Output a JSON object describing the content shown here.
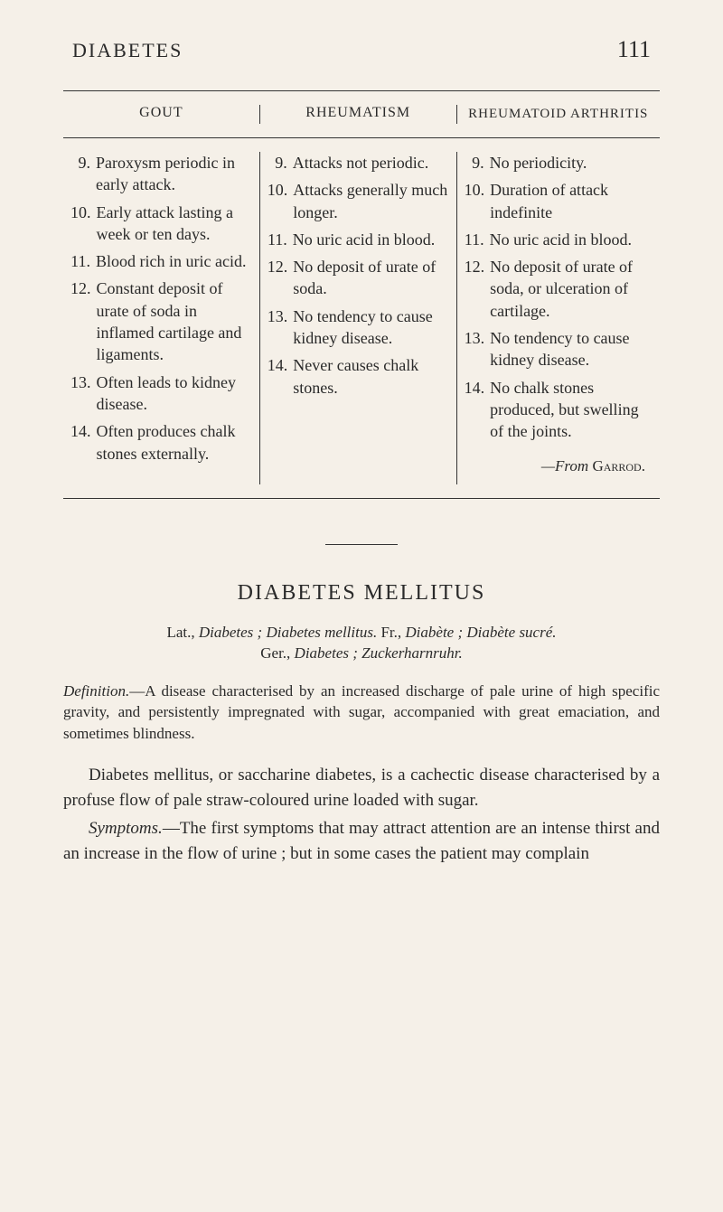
{
  "header": {
    "title": "DIABETES",
    "page_number": "111"
  },
  "table": {
    "columns": {
      "col1_header": "GOUT",
      "col2_header": "RHEUMATISM",
      "col3_header": "RHEUMATOID ARTHRITIS"
    },
    "rows": {
      "gout": [
        {
          "num": "9.",
          "text": "Paroxysm periodic in early attack."
        },
        {
          "num": "10.",
          "text": "Early attack lasting a week or ten days."
        },
        {
          "num": "11.",
          "text": "Blood rich in uric acid."
        },
        {
          "num": "12.",
          "text": "Constant deposit of urate of soda in inflamed cartilage and ligaments."
        },
        {
          "num": "13.",
          "text": "Often leads to kidney disease."
        },
        {
          "num": "14.",
          "text": "Often produces chalk stones externally."
        }
      ],
      "rheumatism": [
        {
          "num": "9.",
          "text": "Attacks not periodic."
        },
        {
          "num": "10.",
          "text": "Attacks generally much longer."
        },
        {
          "num": "11.",
          "text": "No uric acid in blood."
        },
        {
          "num": "12.",
          "text": "No deposit of urate of soda."
        },
        {
          "num": "13.",
          "text": "No tendency to cause kidney disease."
        },
        {
          "num": "14.",
          "text": "Never causes chalk stones."
        }
      ],
      "rheumatoid": [
        {
          "num": "9.",
          "text": "No periodicity."
        },
        {
          "num": "10.",
          "text": "Duration of attack indefinite"
        },
        {
          "num": "11.",
          "text": "No uric acid in blood."
        },
        {
          "num": "12.",
          "text": "No deposit of urate of soda, or ulceration of cartilage."
        },
        {
          "num": "13.",
          "text": "No tendency to cause kidney disease."
        },
        {
          "num": "14.",
          "text": "No chalk stones produced, but swelling of the joints."
        }
      ]
    },
    "citation_prefix": "—From ",
    "citation_name": "Garrod."
  },
  "section": {
    "title": "DIABETES MELLITUS",
    "lat_prefix": "Lat., ",
    "lat_italic1": "Diabetes ; Diabetes mellitus.",
    "lat_mid": " Fr., ",
    "lat_italic2": "Diabète ; Diabète sucré.",
    "ger_prefix": "Ger., ",
    "ger_italic": "Diabetes ; Zuckerharnruhr.",
    "definition_label": "Definition.",
    "definition_text": "—A disease characterised by an increased discharge of pale urine of high specific gravity, and persistently impregnated with sugar, accompanied with great emaciation, and sometimes blindness.",
    "para1": "Diabetes mellitus, or saccharine diabetes, is a cachectic disease characterised by a profuse flow of pale straw-coloured urine loaded with sugar.",
    "symptoms_label": "Symptoms.",
    "para2": "—The first symptoms that may attract attention are an intense thirst and an increase in the flow of urine ; but in some cases the patient may complain"
  },
  "styling": {
    "background_color": "#f5f0e8",
    "text_color": "#2a2a2a",
    "border_color": "#333333",
    "body_font": "Georgia, Times New Roman, serif",
    "header_fontsize": 22,
    "page_number_fontsize": 26,
    "table_fontsize": 18,
    "section_title_fontsize": 24,
    "body_text_fontsize": 19,
    "definition_fontsize": 17
  }
}
